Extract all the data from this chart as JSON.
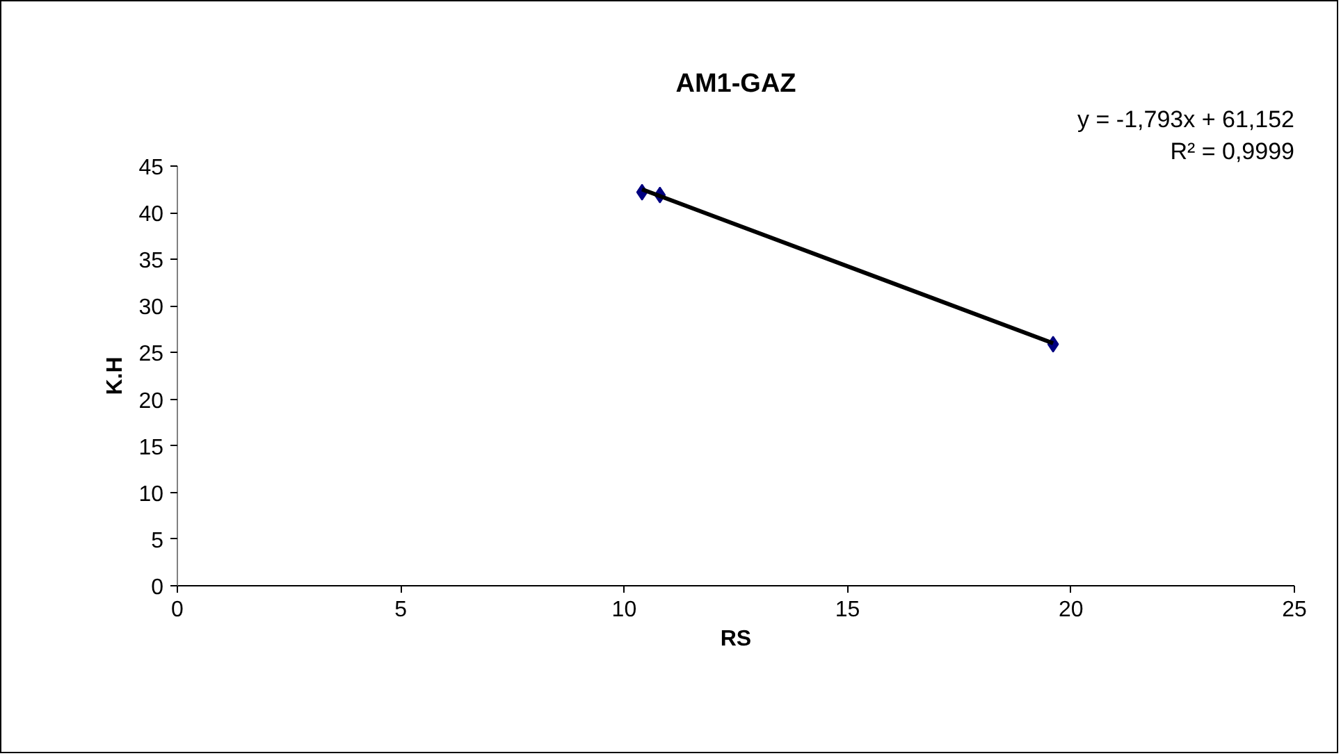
{
  "chart_data": {
    "type": "scatter",
    "title": "AM1-GAZ",
    "xlabel": "RS",
    "ylabel": "K.H",
    "series": [
      {
        "color": "#000080",
        "marker": "diamond",
        "x": [
          10.4,
          10.8,
          19.6
        ],
        "values": [
          42.2,
          41.9,
          25.9
        ]
      },
      {
        "type": "line",
        "color": "#000000",
        "marker": "none",
        "x": [
          10.4,
          19.6
        ],
        "values": [
          42.5,
          26.0
        ]
      }
    ],
    "annotations": [
      "y = -1,793x + 61,152",
      "R² = 0,9999"
    ],
    "xlim": [
      0,
      25
    ],
    "ylim": [
      0,
      45
    ],
    "xticks": [
      0,
      5,
      10,
      15,
      20,
      25
    ],
    "yticks": [
      0,
      5,
      10,
      15,
      20,
      25,
      30,
      35,
      40,
      45
    ],
    "grid": false
  }
}
